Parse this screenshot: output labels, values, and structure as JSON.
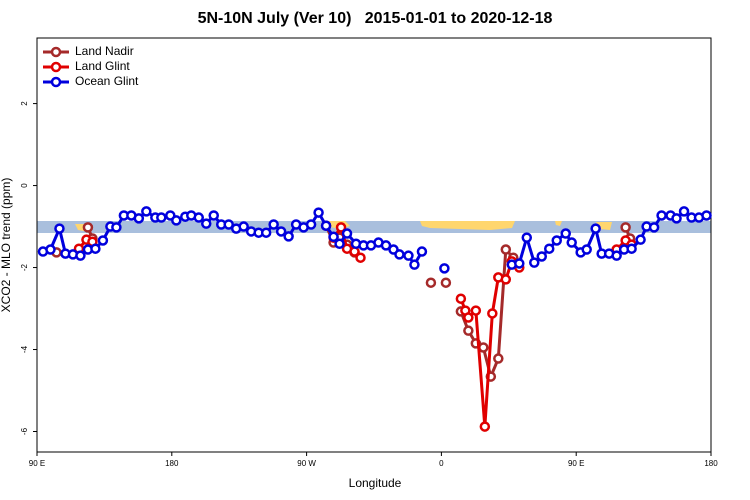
{
  "chart_data": {
    "type": "line",
    "title": "5N-10N July (Ver 10)   2015-01-01 to 2020-12-18",
    "xlabel": "Longitude",
    "ylabel": "XCO2 - MLO trend (ppm)",
    "xlim": [
      90,
      540
    ],
    "ylim": [
      -6.5,
      3.6
    ],
    "xticks": [
      {
        "value": 90,
        "label": "90 E"
      },
      {
        "value": 180,
        "label": "180"
      },
      {
        "value": 270,
        "label": "90 W"
      },
      {
        "value": 360,
        "label": "0"
      },
      {
        "value": 450,
        "label": "90 E"
      },
      {
        "value": 540,
        "label": "180"
      }
    ],
    "yticks": [
      2,
      0,
      -2,
      -4,
      -6
    ],
    "legend": "top-left",
    "series": [
      {
        "name": "Land Nadir",
        "color": "#a52a2a",
        "x": [
          103,
          null,
          124,
          127,
          null,
          283,
          288,
          292,
          297,
          302,
          null,
          353,
          null,
          363,
          null,
          373,
          378,
          383,
          388,
          393,
          398,
          403,
          408,
          null,
          483,
          486
        ],
        "values": [
          -1.63,
          null,
          -1.02,
          -1.29,
          null,
          -0.98,
          -1.39,
          -1.27,
          -1.44,
          -1.63,
          null,
          -2.37,
          null,
          -2.37,
          null,
          -3.07,
          -3.54,
          -3.85,
          -3.95,
          -4.66,
          -4.22,
          -1.56,
          -1.76,
          null,
          -1.02,
          -1.29
        ]
      },
      {
        "name": "Land Glint",
        "color": "#e00000",
        "x": [
          118,
          123,
          127,
          null,
          288,
          293,
          297,
          302,
          306,
          null,
          373,
          376,
          378,
          383,
          389,
          394,
          398,
          403,
          407,
          412,
          null,
          477,
          483,
          487
        ],
        "values": [
          -1.54,
          -1.32,
          -1.37,
          null,
          -1.27,
          -1.02,
          -1.54,
          -1.61,
          -1.76,
          null,
          -2.76,
          -3.05,
          -3.22,
          -3.05,
          -5.88,
          -3.12,
          -2.24,
          -2.29,
          -1.85,
          -2.0,
          null,
          -1.56,
          -1.34,
          -1.44
        ]
      },
      {
        "name": "Ocean Glint",
        "color": "#0000dd",
        "x": [
          94,
          99,
          105,
          109,
          114,
          119,
          124,
          129,
          134,
          139,
          143,
          148,
          153,
          158,
          163,
          169,
          173,
          179,
          183,
          189,
          193,
          198,
          203,
          208,
          213,
          218,
          223,
          228,
          233,
          238,
          243,
          248,
          253,
          258,
          263,
          268,
          273,
          278,
          283,
          288,
          292,
          297,
          303,
          308,
          313,
          318,
          323,
          328,
          332,
          338,
          342,
          347,
          null,
          362,
          null,
          407,
          412,
          417,
          422,
          427,
          432,
          437,
          443,
          447,
          453,
          457,
          463,
          467,
          472,
          477,
          482,
          487,
          493,
          497,
          502,
          507,
          513,
          517,
          522,
          527,
          532,
          537
        ],
        "values": [
          -1.61,
          -1.56,
          -1.05,
          -1.66,
          -1.68,
          -1.71,
          -1.56,
          -1.54,
          -1.34,
          -1.0,
          -1.02,
          -0.73,
          -0.73,
          -0.8,
          -0.63,
          -0.78,
          -0.78,
          -0.73,
          -0.85,
          -0.76,
          -0.73,
          -0.78,
          -0.93,
          -0.73,
          -0.95,
          -0.95,
          -1.05,
          -1.0,
          -1.12,
          -1.15,
          -1.15,
          -0.95,
          -1.12,
          -1.24,
          -0.95,
          -1.02,
          -0.95,
          -0.66,
          -0.98,
          -1.25,
          -1.42,
          -1.17,
          -1.42,
          -1.46,
          -1.46,
          -1.39,
          -1.46,
          -1.56,
          -1.68,
          -1.71,
          -1.93,
          -1.61,
          null,
          -2.02,
          null,
          -1.93,
          -1.9,
          -1.27,
          -1.88,
          -1.73,
          -1.54,
          -1.34,
          -1.17,
          -1.39,
          -1.63,
          -1.56,
          -1.05,
          -1.66,
          -1.66,
          -1.71,
          -1.56,
          -1.54,
          -1.32,
          -1.0,
          -1.02,
          -0.73,
          -0.73,
          -0.8,
          -0.63,
          -0.78,
          -0.78,
          -0.73
        ]
      }
    ]
  }
}
